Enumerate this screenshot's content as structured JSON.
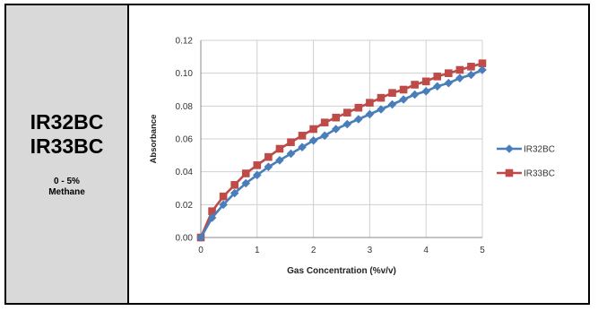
{
  "panel": {
    "models": [
      "IR32BC",
      "IR33BC"
    ],
    "range_line1": "0 - 5%",
    "range_line2": "Methane"
  },
  "chart_data": {
    "type": "line",
    "title": "",
    "xlabel": "Gas Concentration (%v/v)",
    "ylabel": "Absorbance",
    "xlim": [
      0,
      5
    ],
    "ylim": [
      0,
      0.12
    ],
    "xticks": [
      "0",
      "1",
      "2",
      "3",
      "4",
      "5"
    ],
    "yticks": [
      "0.00",
      "0.02",
      "0.04",
      "0.06",
      "0.08",
      "0.10",
      "0.12"
    ],
    "grid": true,
    "legend_position": "right",
    "series": [
      {
        "name": "IR32BC",
        "color": "#4a7ebb",
        "marker": "diamond",
        "x": [
          0,
          0.2,
          0.4,
          0.6,
          0.8,
          1.0,
          1.2,
          1.4,
          1.6,
          1.8,
          2.0,
          2.2,
          2.4,
          2.6,
          2.8,
          3.0,
          3.2,
          3.4,
          3.6,
          3.8,
          4.0,
          4.2,
          4.4,
          4.6,
          4.8,
          5.0
        ],
        "y": [
          0,
          0.012,
          0.02,
          0.027,
          0.033,
          0.038,
          0.043,
          0.047,
          0.051,
          0.055,
          0.059,
          0.062,
          0.066,
          0.069,
          0.072,
          0.075,
          0.078,
          0.081,
          0.084,
          0.087,
          0.089,
          0.092,
          0.094,
          0.097,
          0.099,
          0.102
        ]
      },
      {
        "name": "IR33BC",
        "color": "#be4b48",
        "marker": "square",
        "x": [
          0,
          0.2,
          0.4,
          0.6,
          0.8,
          1.0,
          1.2,
          1.4,
          1.6,
          1.8,
          2.0,
          2.2,
          2.4,
          2.6,
          2.8,
          3.0,
          3.2,
          3.4,
          3.6,
          3.8,
          4.0,
          4.2,
          4.4,
          4.6,
          4.8,
          5.0
        ],
        "y": [
          0,
          0.016,
          0.025,
          0.032,
          0.039,
          0.044,
          0.049,
          0.054,
          0.058,
          0.062,
          0.066,
          0.07,
          0.073,
          0.076,
          0.079,
          0.082,
          0.085,
          0.088,
          0.09,
          0.093,
          0.095,
          0.098,
          0.1,
          0.102,
          0.104,
          0.106
        ]
      }
    ]
  }
}
